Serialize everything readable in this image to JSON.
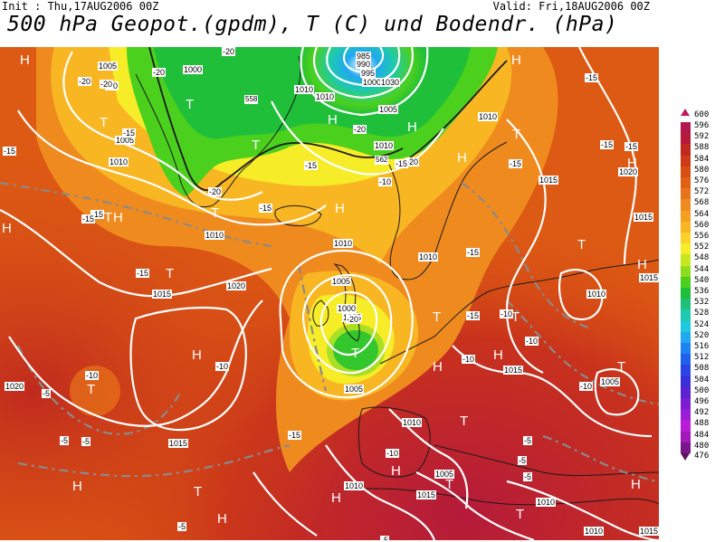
{
  "header": {
    "init": "Init : Thu,17AUG2006 00Z",
    "valid": "Valid: Fri,18AUG2006 00Z",
    "title": "500 hPa Geopot.(gpdm), T (C) und Bodendr. (hPa)"
  },
  "legend": {
    "top_label": "600",
    "bottom_label": "476",
    "entries": [
      {
        "value": "596",
        "color": "#b0194a"
      },
      {
        "value": "592",
        "color": "#b51a3a"
      },
      {
        "value": "588",
        "color": "#c02a1e"
      },
      {
        "value": "584",
        "color": "#cd3a15"
      },
      {
        "value": "580",
        "color": "#d84f12"
      },
      {
        "value": "576",
        "color": "#e06014"
      },
      {
        "value": "572",
        "color": "#e8741a"
      },
      {
        "value": "568",
        "color": "#ef8a1f"
      },
      {
        "value": "564",
        "color": "#f5a021"
      },
      {
        "value": "560",
        "color": "#f9b623"
      },
      {
        "value": "556",
        "color": "#fcd12a"
      },
      {
        "value": "552",
        "color": "#f6ec28"
      },
      {
        "value": "548",
        "color": "#c8e81e"
      },
      {
        "value": "544",
        "color": "#8ddd1c"
      },
      {
        "value": "540",
        "color": "#4bd01e"
      },
      {
        "value": "536",
        "color": "#1fbf3a"
      },
      {
        "value": "532",
        "color": "#1ec07a"
      },
      {
        "value": "528",
        "color": "#1ec9b0"
      },
      {
        "value": "524",
        "color": "#1ec8de"
      },
      {
        "value": "520",
        "color": "#1fa8f0"
      },
      {
        "value": "516",
        "color": "#1f82f2"
      },
      {
        "value": "512",
        "color": "#2060ee"
      },
      {
        "value": "508",
        "color": "#2a44e6"
      },
      {
        "value": "504",
        "color": "#3a2fd9"
      },
      {
        "value": "500",
        "color": "#5a23d0"
      },
      {
        "value": "496",
        "color": "#7c1dd4"
      },
      {
        "value": "492",
        "color": "#9c1dd8"
      },
      {
        "value": "488",
        "color": "#b81dd8"
      },
      {
        "value": "484",
        "color": "#a318b8"
      },
      {
        "value": "480",
        "color": "#7a168c"
      }
    ]
  },
  "map": {
    "pressure_centers": [
      {
        "type": "H",
        "id": "h1"
      },
      {
        "type": "H",
        "id": "h2"
      },
      {
        "type": "H",
        "id": "h3"
      },
      {
        "type": "H",
        "id": "h4"
      },
      {
        "type": "H",
        "id": "h5"
      },
      {
        "type": "H",
        "id": "h6"
      },
      {
        "type": "H",
        "id": "h7"
      },
      {
        "type": "H",
        "id": "h8"
      },
      {
        "type": "H",
        "id": "h9"
      },
      {
        "type": "H",
        "id": "h10"
      },
      {
        "type": "H",
        "id": "h11"
      },
      {
        "type": "H",
        "id": "h12"
      },
      {
        "type": "H",
        "id": "h13"
      },
      {
        "type": "H",
        "id": "h14"
      },
      {
        "type": "H",
        "id": "h15"
      },
      {
        "type": "H",
        "id": "h16"
      },
      {
        "type": "H",
        "id": "h17"
      },
      {
        "type": "H",
        "id": "h18"
      },
      {
        "type": "T",
        "id": "t1"
      },
      {
        "type": "T",
        "id": "t2"
      },
      {
        "type": "T",
        "id": "t3"
      },
      {
        "type": "T",
        "id": "t4"
      },
      {
        "type": "T",
        "id": "t5"
      },
      {
        "type": "T",
        "id": "t6"
      },
      {
        "type": "T",
        "id": "t7"
      },
      {
        "type": "T",
        "id": "t8"
      },
      {
        "type": "T",
        "id": "t9"
      },
      {
        "type": "T",
        "id": "t10"
      },
      {
        "type": "T",
        "id": "t11"
      },
      {
        "type": "T",
        "id": "t12"
      },
      {
        "type": "T",
        "id": "t13"
      },
      {
        "type": "T",
        "id": "t14"
      },
      {
        "type": "T",
        "id": "t15"
      },
      {
        "type": "T",
        "id": "t16"
      },
      {
        "type": "T",
        "id": "t17"
      }
    ],
    "isobar_labels": [
      "1005",
      "1000",
      "1010",
      "1010",
      "985",
      "990",
      "995",
      "1000",
      "1030",
      "1005",
      "1010",
      "1010",
      "1005",
      "1010",
      "1015",
      "1020",
      "1015",
      "1010",
      "1010",
      "1010",
      "1015",
      "1005",
      "1000",
      "1005",
      "1020",
      "1020",
      "1015",
      "1010",
      "1015",
      "1005",
      "1005",
      "1010",
      "1015",
      "1010",
      "1005",
      "1015",
      "1010",
      "1010",
      "1015"
    ],
    "temperature_labels": [
      "-20",
      "-20",
      "-20",
      "-15",
      "-15",
      "-20",
      "-20",
      "-20",
      "-15",
      "-20",
      "-15",
      "-15",
      "-15",
      "-15",
      "-15",
      "-15",
      "-10",
      "-20",
      "-20",
      "-15",
      "-15",
      "-15",
      "-10",
      "-10",
      "-10",
      "-10",
      "-5",
      "-10",
      "-5",
      "-5",
      "-5",
      "-5",
      "-5",
      "-10",
      "-5",
      "-15",
      "-5",
      "-15",
      "-10",
      "-15"
    ],
    "height_labels": [
      "558",
      "562"
    ]
  }
}
